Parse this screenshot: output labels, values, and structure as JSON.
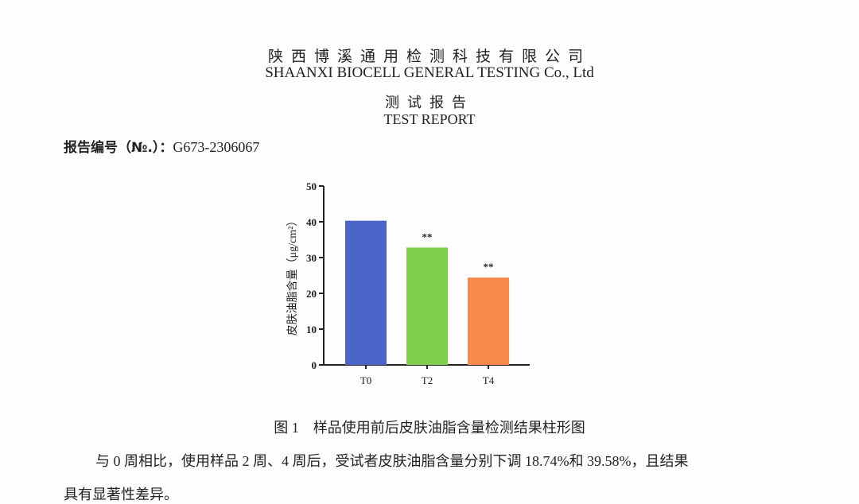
{
  "header": {
    "company_cn": "陕西博溪通用检测科技有限公司",
    "company_en": "SHAANXI BIOCELL GENERAL TESTING Co., Ltd",
    "report_cn": "测试报告",
    "report_en": "TEST REPORT"
  },
  "report_number": {
    "label": "报告编号（№.）：",
    "value": "G673-2306067"
  },
  "chart_data": {
    "type": "bar",
    "y_label": "皮肤油脂含量（μg/cm²）",
    "categories": [
      "T0",
      "T2",
      "T4"
    ],
    "values": [
      40.3,
      32.8,
      24.4
    ],
    "colors": [
      "#4a64c8",
      "#7dcf4c",
      "#f98a4b"
    ],
    "annotations": [
      {
        "category": "T2",
        "text": "**"
      },
      {
        "category": "T4",
        "text": "**"
      }
    ],
    "ylim": [
      0,
      50
    ],
    "yticks": [
      0,
      10,
      20,
      30,
      40,
      50
    ],
    "grid": false
  },
  "caption": "图 1　样品使用前后皮肤油脂含量检测结果柱形图",
  "paragraph": {
    "lines": [
      "与 0 周相比，使用样品 2 周、4 周后，受试者皮肤油脂含量分别下调 18.74%和 39.58%，且结果",
      "具有显著性差异。"
    ]
  }
}
